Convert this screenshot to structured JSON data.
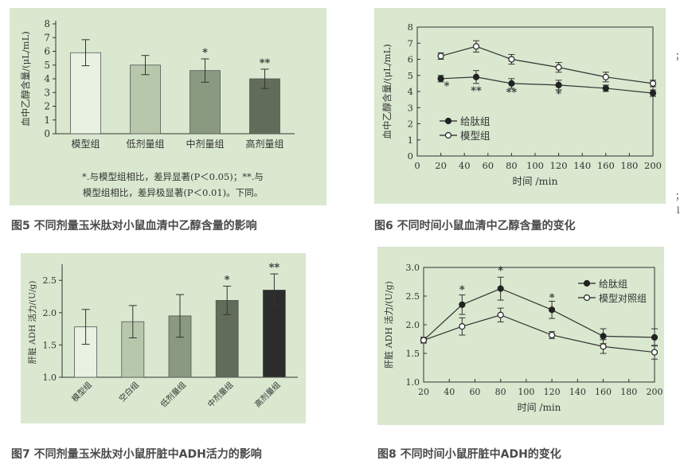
{
  "captions": {
    "fig5": "图5 不同剂量玉米肽对小鼠血清中乙醇含量的影响",
    "fig6": "图6 不同时间小鼠血清中乙醇含量的变化",
    "fig7": "图7 不同剂量玉米肽对小鼠肝脏中ADH活力的影响",
    "fig8": "图8 不同时间小鼠肝脏中ADH的变化"
  },
  "fig5_note": {
    "line1": "*.与模型组相比，差异显著(P＜0.05)；**.与",
    "line2": "模型组相比，差异极显著(P＜0.01)。下同。"
  },
  "edge_chars": [
    "；",
    "；",
    "l"
  ],
  "colors": {
    "panel_bg": "#d9e8cf",
    "caption": "#4a4a4a",
    "bar_light": "#e9f1e2",
    "bar_mid_light": "#b7c7ac",
    "bar_mid": "#8a9a80",
    "bar_dark": "#616d59",
    "bar_darkest": "#2c2c2c"
  },
  "chart_data": [
    {
      "id": "fig5",
      "type": "bar",
      "title": "",
      "xlabel": "",
      "ylabel": "血中乙醇含量/(μL/mL)",
      "ylim": [
        0,
        8
      ],
      "yticks": [
        "0",
        "1",
        "2",
        "3",
        "4",
        "5",
        "6",
        "7",
        "8"
      ],
      "categories": [
        "模型组",
        "低剂量组",
        "中剂量组",
        "高剂量组"
      ],
      "values": [
        5.9,
        5.0,
        4.6,
        4.0
      ],
      "errors": [
        0.95,
        0.7,
        0.85,
        0.7
      ],
      "marks": [
        "",
        "",
        "*",
        "**"
      ],
      "bar_colors": [
        "#e9f1e2",
        "#b7c7ac",
        "#8a9a80",
        "#616d59"
      ],
      "grid": false
    },
    {
      "id": "fig6",
      "type": "line",
      "title": "",
      "xlabel": "时间 /min",
      "ylabel": "血中乙醇含量/(μL/mL)",
      "xlim": [
        0,
        200
      ],
      "ylim": [
        0,
        8
      ],
      "xticks": [
        "0",
        "20",
        "40",
        "60",
        "80",
        "100",
        "120",
        "140",
        "160",
        "180",
        "200"
      ],
      "yticks": [
        "0",
        "1",
        "2",
        "3",
        "4",
        "5",
        "6",
        "7",
        "8"
      ],
      "x": [
        20,
        50,
        80,
        120,
        160,
        200
      ],
      "series": [
        {
          "name": "给肽组",
          "marker": "filled",
          "values": [
            4.8,
            4.9,
            4.5,
            4.4,
            4.2,
            3.9
          ],
          "errors": [
            0.2,
            0.4,
            0.3,
            0.3,
            0.2,
            0.2
          ]
        },
        {
          "name": "模型组",
          "marker": "open",
          "values": [
            6.2,
            6.8,
            6.0,
            5.5,
            4.9,
            4.5
          ],
          "errors": [
            0.2,
            0.35,
            0.3,
            0.3,
            0.3,
            0.2
          ]
        }
      ],
      "marks": [
        {
          "x": 25,
          "text": "*"
        },
        {
          "x": 50,
          "text": "**"
        },
        {
          "x": 80,
          "text": "**"
        },
        {
          "x": 120,
          "text": "*"
        }
      ],
      "legend": "middle-left",
      "grid": false
    },
    {
      "id": "fig7",
      "type": "bar",
      "title": "",
      "xlabel": "",
      "ylabel": "肝脏 ADH 活力/(U/g)",
      "ylim": [
        1.0,
        2.7
      ],
      "yticks": [
        "1.0",
        "1.5",
        "2.0",
        "2.5"
      ],
      "categories": [
        "模型组",
        "空白组",
        "低剂量组",
        "中剂量组",
        "高剂量组"
      ],
      "values": [
        1.78,
        1.86,
        1.95,
        2.19,
        2.35
      ],
      "errors": [
        0.27,
        0.25,
        0.33,
        0.22,
        0.25
      ],
      "marks": [
        "",
        "",
        "",
        "*",
        "**"
      ],
      "bar_colors": [
        "#e9f1e2",
        "#b7c7ac",
        "#8a9a80",
        "#616d59",
        "#2c2c2c"
      ],
      "grid": false
    },
    {
      "id": "fig8",
      "type": "line",
      "title": "",
      "xlabel": "时间 /min",
      "ylabel": "肝脏 ADH 活力/(U/g)",
      "xlim": [
        20,
        200
      ],
      "ylim": [
        1.0,
        3.0
      ],
      "xticks": [
        "20",
        "40",
        "60",
        "80",
        "100",
        "120",
        "140",
        "160",
        "180",
        "200"
      ],
      "yticks": [
        "1.0",
        "1.5",
        "2.0",
        "2.5",
        "3.0"
      ],
      "x": [
        20,
        50,
        80,
        120,
        160,
        200
      ],
      "series": [
        {
          "name": "给肽组",
          "marker": "filled",
          "values": [
            1.73,
            2.35,
            2.63,
            2.26,
            1.8,
            1.78
          ],
          "errors": [
            0.05,
            0.17,
            0.2,
            0.15,
            0.13,
            0.15
          ]
        },
        {
          "name": "模型对照组",
          "marker": "open",
          "values": [
            1.73,
            1.97,
            2.17,
            1.82,
            1.62,
            1.52
          ],
          "errors": [
            0.05,
            0.15,
            0.12,
            0.06,
            0.12,
            0.12
          ]
        }
      ],
      "marks": [
        {
          "x": 50,
          "text": "*"
        },
        {
          "x": 80,
          "text": "*"
        },
        {
          "x": 120,
          "text": "*"
        }
      ],
      "legend": "top-right",
      "grid": false
    }
  ]
}
